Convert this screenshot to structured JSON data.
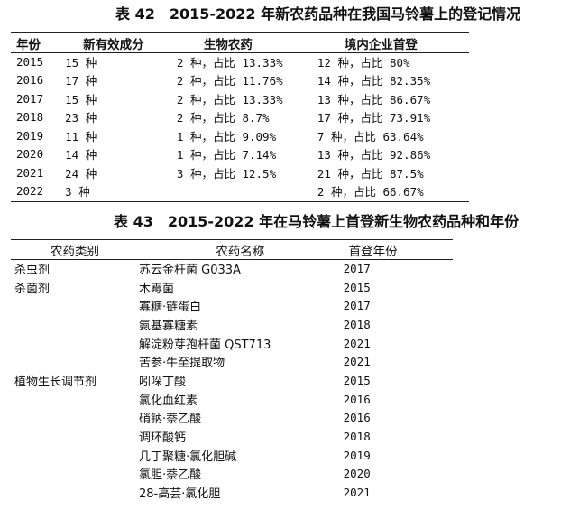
{
  "table42": {
    "title": "表 42　2015-2022 年新农药品种在我国马铃薯上的登记情况",
    "headers": [
      "年份",
      "新有效成分",
      "生物农药",
      "境内企业首登"
    ],
    "rows": [
      [
        "2015",
        "15 种",
        "2 种，占比 13.33%",
        "12 种，占比 80%"
      ],
      [
        "2016",
        "17 种",
        "2 种，占比 11.76%",
        "14 种，占比 82.35%"
      ],
      [
        "2017",
        "15 种",
        "2 种，占比 13.33%",
        "13 种，占比 86.67%"
      ],
      [
        "2018",
        "23 种",
        "2 种，占比 8.7%",
        "17 种，占比 73.91%"
      ],
      [
        "2019",
        "11 种",
        "1 种，占比 9.09%",
        "7 种，占比 63.64%"
      ],
      [
        "2020",
        "14 种",
        "1 种，占比 7.14%",
        "13 种，占比 92.86%"
      ],
      [
        "2021",
        "24 种",
        "3 种，占比 12.5%",
        "21 种，占比 87.5%"
      ],
      [
        "2022",
        "3 种",
        "",
        "2 种，占比 66.67%"
      ]
    ]
  },
  "table43": {
    "title": "表 43　2015-2022 年在马铃薯上首登新生物农药品种和年份",
    "headers": [
      "农药类别",
      "农药名称",
      "首登年份"
    ],
    "rows": [
      [
        "杀虫剂",
        "苏云金杆菌 G033A",
        "2017"
      ],
      [
        "杀菌剂",
        "木霉菌",
        "2015"
      ],
      [
        "",
        "寡糖·链蛋白",
        "2017"
      ],
      [
        "",
        "氨基寡糖素",
        "2018"
      ],
      [
        "",
        "解淀粉芽孢杆菌 QST713",
        "2021"
      ],
      [
        "",
        "苦参·牛至提取物",
        "2021"
      ],
      [
        "植物生长调节剂",
        "吲哚丁酸",
        "2015"
      ],
      [
        "",
        "氯化血红素",
        "2016"
      ],
      [
        "",
        "硝钠·萘乙酸",
        "2016"
      ],
      [
        "",
        "调环酸钙",
        "2018"
      ],
      [
        "",
        "几丁聚糖·氯化胆碱",
        "2019"
      ],
      [
        "",
        "氯胆·萘乙酸",
        "2020"
      ],
      [
        "",
        "28-高芸·氯化胆",
        "2021"
      ]
    ]
  }
}
